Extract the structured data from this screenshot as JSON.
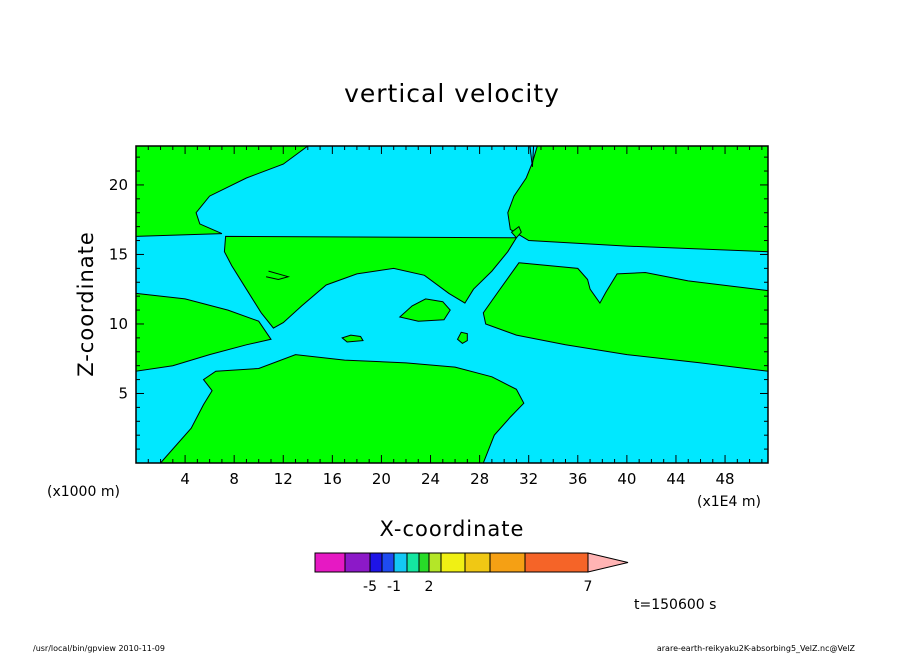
{
  "chart_data": {
    "type": "contour",
    "title": "vertical velocity",
    "xlabel": "X-coordinate",
    "ylabel": "Z-coordinate",
    "x_unit_label": "(x1000 m)",
    "x_unit_label_right": "(x1E4 m)",
    "xlim": [
      0,
      51.5
    ],
    "ylim": [
      0,
      22.8
    ],
    "xticks": [
      4,
      8,
      12,
      16,
      20,
      24,
      28,
      32,
      36,
      40,
      44,
      48
    ],
    "yticks": [
      5,
      10,
      15,
      20
    ],
    "grid": false,
    "colors": {
      "positive": "#00ff00",
      "negative": "#00e8ff",
      "contour_line": "#000000"
    },
    "regions": [
      {
        "sign": "positive",
        "points": [
          [
            0,
            22.8
          ],
          [
            14,
            22.8
          ],
          [
            12,
            21.5
          ],
          [
            9,
            20.5
          ],
          [
            6,
            19.2
          ],
          [
            4.9,
            18
          ],
          [
            5.2,
            17.2
          ],
          [
            7,
            16.5
          ],
          [
            0,
            16.3
          ]
        ]
      },
      {
        "sign": "positive",
        "points": [
          [
            32.7,
            22.8
          ],
          [
            51.5,
            22.8
          ],
          [
            51.5,
            15.2
          ],
          [
            40,
            15.6
          ],
          [
            32,
            16
          ],
          [
            30.5,
            16.8
          ],
          [
            30.3,
            18
          ],
          [
            30.8,
            19.2
          ],
          [
            31.8,
            20.5
          ],
          [
            32.3,
            21.6
          ]
        ]
      },
      {
        "sign": "positive",
        "points": [
          [
            7.3,
            16.3
          ],
          [
            31,
            16.2
          ],
          [
            30.3,
            15.2
          ],
          [
            29,
            13.8
          ],
          [
            27.5,
            12.5
          ],
          [
            26.8,
            11.5
          ],
          [
            25.5,
            12.2
          ],
          [
            23.5,
            13.5
          ],
          [
            21,
            14
          ],
          [
            18,
            13.6
          ],
          [
            15.5,
            12.8
          ],
          [
            13.5,
            11.3
          ],
          [
            12,
            10.1
          ],
          [
            11.2,
            9.7
          ],
          [
            10.2,
            10.8
          ],
          [
            9,
            12.5
          ],
          [
            7.8,
            14.2
          ],
          [
            7.2,
            15.2
          ]
        ]
      },
      {
        "sign": "positive",
        "points": [
          [
            0,
            12.2
          ],
          [
            4,
            11.8
          ],
          [
            7.5,
            11
          ],
          [
            10,
            10.2
          ],
          [
            11,
            8.9
          ],
          [
            9,
            8.5
          ],
          [
            6,
            7.8
          ],
          [
            3,
            7
          ],
          [
            0,
            6.6
          ]
        ]
      },
      {
        "sign": "positive",
        "points": [
          [
            31.2,
            14.4
          ],
          [
            36,
            14
          ],
          [
            36.8,
            13.2
          ],
          [
            37,
            12.5
          ],
          [
            37.8,
            11.5
          ],
          [
            38.3,
            12.3
          ],
          [
            39.2,
            13.6
          ],
          [
            41.5,
            13.7
          ],
          [
            45,
            13.1
          ],
          [
            51.5,
            12.4
          ],
          [
            51.5,
            6.6
          ],
          [
            46,
            7.2
          ],
          [
            40,
            7.8
          ],
          [
            35,
            8.5
          ],
          [
            31,
            9.2
          ],
          [
            28.5,
            10
          ],
          [
            28.3,
            10.8
          ],
          [
            29.5,
            12.3
          ]
        ]
      },
      {
        "sign": "positive",
        "points": [
          [
            2,
            0
          ],
          [
            4.5,
            2.5
          ],
          [
            5.5,
            4.2
          ],
          [
            6.2,
            5.2
          ],
          [
            5.5,
            6
          ],
          [
            6.5,
            6.6
          ],
          [
            10,
            6.8
          ],
          [
            13,
            7.8
          ],
          [
            17,
            7.4
          ],
          [
            22,
            7.2
          ],
          [
            26,
            6.9
          ],
          [
            29,
            6.2
          ],
          [
            31,
            5.3
          ],
          [
            31.6,
            4.3
          ],
          [
            30.5,
            3.3
          ],
          [
            29.2,
            2
          ],
          [
            28.3,
            0
          ]
        ]
      },
      {
        "sign": "positive",
        "points": [
          [
            21.5,
            10.5
          ],
          [
            22.5,
            11.3
          ],
          [
            23.6,
            11.8
          ],
          [
            25,
            11.6
          ],
          [
            25.6,
            11
          ],
          [
            25.1,
            10.3
          ],
          [
            23,
            10.2
          ]
        ]
      },
      {
        "sign": "positive",
        "points": [
          [
            26.2,
            8.9
          ],
          [
            26.5,
            9.4
          ],
          [
            27,
            9.3
          ],
          [
            27,
            8.8
          ],
          [
            26.6,
            8.6
          ]
        ]
      },
      {
        "sign": "positive",
        "points": [
          [
            16.8,
            9
          ],
          [
            17.5,
            9.2
          ],
          [
            18.3,
            9.1
          ],
          [
            18.5,
            8.8
          ],
          [
            17.2,
            8.7
          ]
        ]
      },
      {
        "sign": "positive",
        "points": [
          [
            30.6,
            16.6
          ],
          [
            31.2,
            17
          ],
          [
            31.4,
            16.6
          ],
          [
            31,
            16.2
          ]
        ]
      }
    ],
    "polyline_contours": [
      [
        [
          10.8,
          13.8
        ],
        [
          12.4,
          13.4
        ],
        [
          11.6,
          13.2
        ],
        [
          10.6,
          13.4
        ]
      ],
      [
        [
          32.1,
          22.8
        ],
        [
          32.3,
          21.3
        ],
        [
          32.4,
          22.8
        ]
      ]
    ],
    "time_label": "t=150600 s",
    "legend": {
      "orientation": "horizontal",
      "colors": [
        "#e619c3",
        "#8c19c8",
        "#1e14e6",
        "#1e4bf0",
        "#14c8f5",
        "#14e6a0",
        "#28dc28",
        "#b4e628",
        "#f0f014",
        "#f0c814",
        "#f5a014",
        "#f56428",
        "#eb1e1e",
        "#ff7878",
        "#ffb4b4"
      ],
      "labels": [
        {
          "text": "-5",
          "boundary": 2
        },
        {
          "text": "-1",
          "boundary": 4
        },
        {
          "text": "2",
          "boundary": 7
        },
        {
          "text": "7",
          "boundary": 12
        }
      ]
    }
  },
  "footer": {
    "left": "/usr/local/bin/gpview  2010-11-09",
    "right": "arare-earth-reikyaku2K-absorbing5_VelZ.nc@VelZ"
  }
}
